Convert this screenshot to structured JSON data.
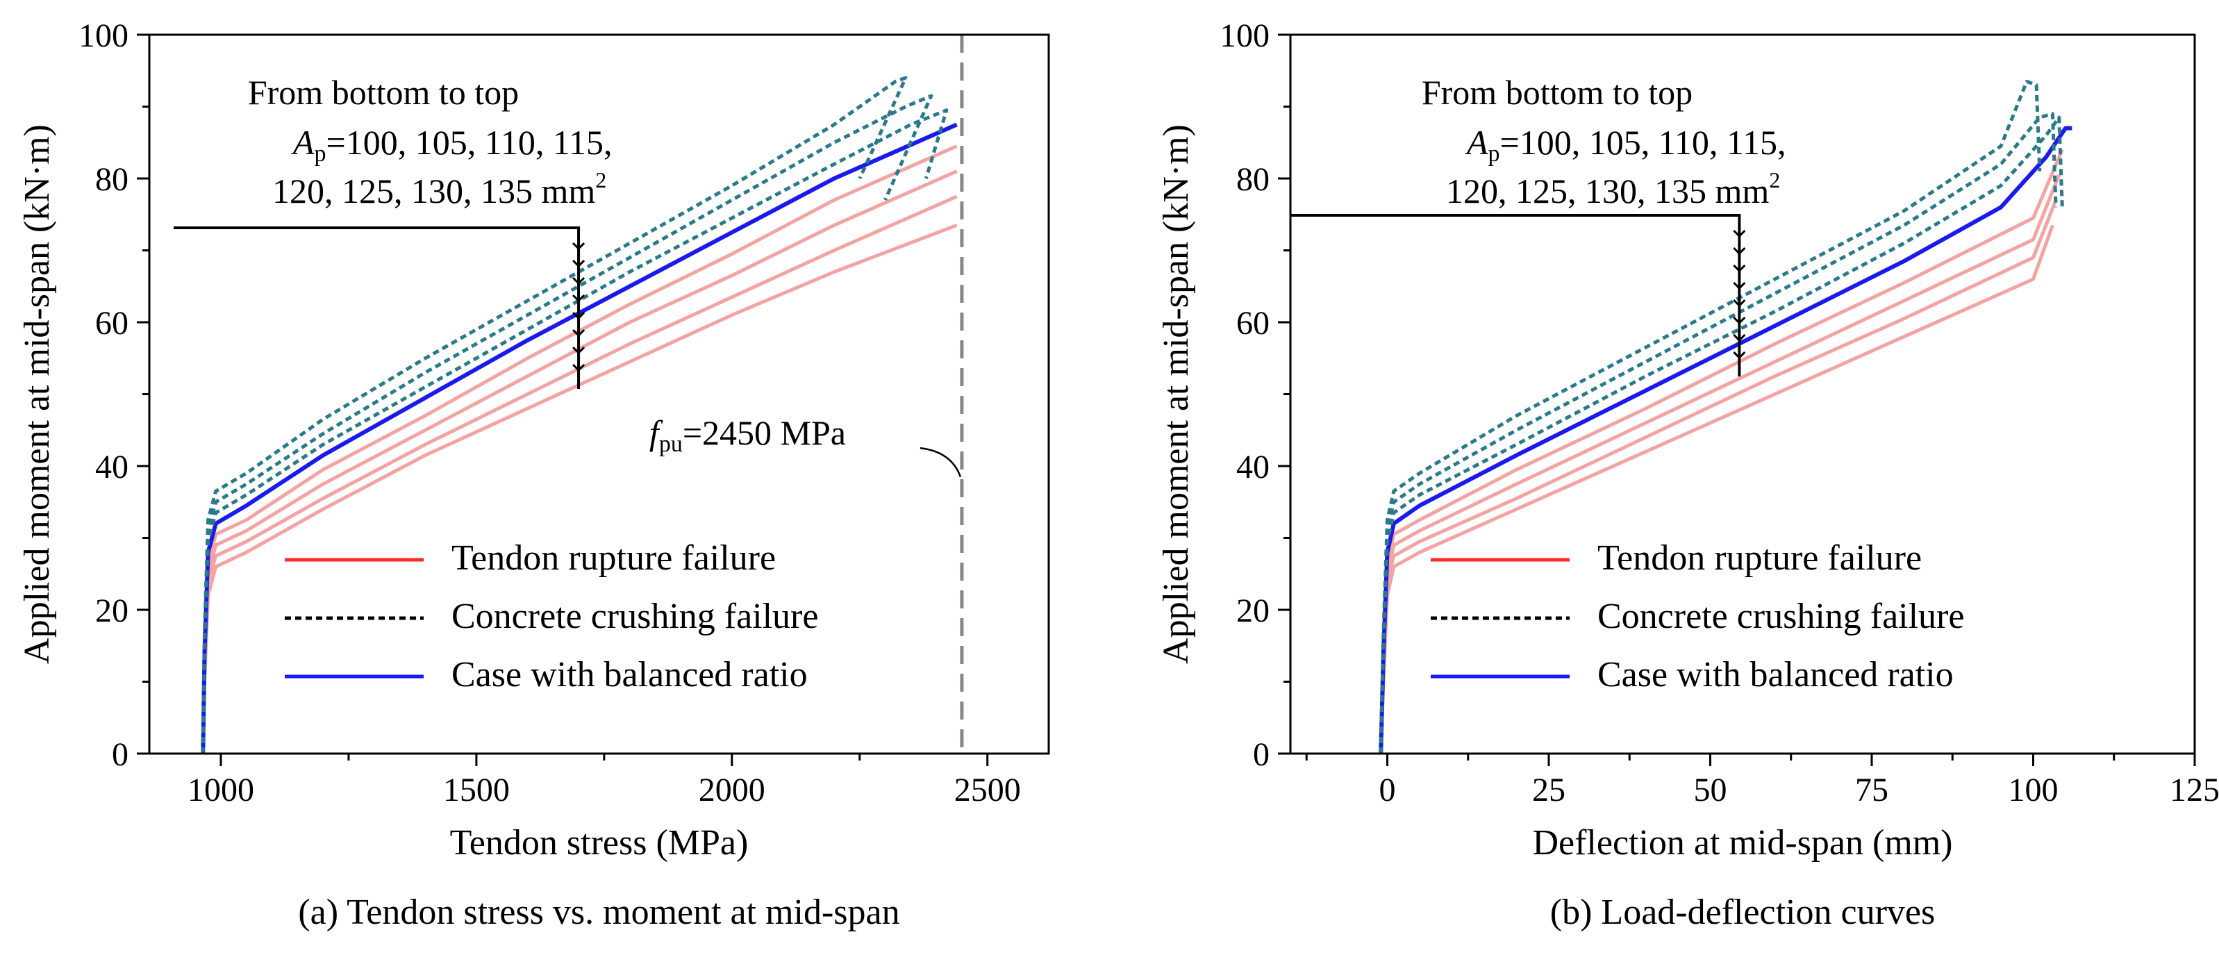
{
  "chart_data": [
    {
      "id": "a",
      "type": "line",
      "caption": "(a) Tendon stress vs. moment at mid-span",
      "xlabel": "Tendon stress (MPa)",
      "ylabel": "Applied moment at mid-span (kN·m)",
      "xlim": [
        860,
        2620
      ],
      "ylim": [
        0,
        100
      ],
      "xticks": [
        1000,
        1500,
        2000,
        2500
      ],
      "yticks": [
        0,
        20,
        40,
        60,
        80,
        100
      ],
      "annotation": {
        "prefix": "f",
        "sub": "pu",
        "suffix": "=2450 MPa",
        "value": 2450
      },
      "note": {
        "line1": "From bottom to top",
        "sym": "A",
        "sub": "p",
        "line2": "=100, 105, 110, 115,",
        "line3": "120, 125, 130, 135 mm",
        "sup": "2",
        "arrow_x": 1700
      },
      "series": [
        {
          "name": "Ap=100",
          "failure": "Tendon rupture failure",
          "x": [
            965,
            968,
            975,
            990,
            1050,
            1200,
            1400,
            1600,
            1800,
            2000,
            2200,
            2440
          ],
          "y": [
            0,
            10,
            22,
            26,
            28,
            34,
            41.5,
            48,
            54.5,
            61,
            67,
            73.5
          ]
        },
        {
          "name": "Ap=105",
          "failure": "Tendon rupture failure",
          "x": [
            965,
            968,
            975,
            990,
            1050,
            1200,
            1400,
            1600,
            1800,
            2000,
            2200,
            2440
          ],
          "y": [
            0,
            11,
            24,
            27.5,
            29.5,
            35.5,
            43,
            50,
            57,
            63.5,
            70,
            77.5
          ]
        },
        {
          "name": "Ap=110",
          "failure": "Tendon rupture failure",
          "x": [
            965,
            968,
            975,
            990,
            1050,
            1200,
            1400,
            1600,
            1800,
            2000,
            2200,
            2440
          ],
          "y": [
            0,
            12,
            25,
            29,
            31,
            37.5,
            45,
            52.5,
            60,
            66.5,
            73.5,
            81
          ]
        },
        {
          "name": "Ap=115",
          "failure": "Tendon rupture failure",
          "x": [
            965,
            968,
            975,
            990,
            1050,
            1200,
            1400,
            1600,
            1800,
            2000,
            2200,
            2440
          ],
          "y": [
            0,
            13,
            26.5,
            30.5,
            32.5,
            39.5,
            47,
            55,
            62.5,
            69.5,
            77,
            84.5
          ]
        },
        {
          "name": "Ap=120",
          "failure": "Case with balanced ratio",
          "x": [
            965,
            968,
            975,
            990,
            1050,
            1200,
            1400,
            1600,
            1800,
            2000,
            2200,
            2440
          ],
          "y": [
            0,
            14,
            28,
            32,
            34.5,
            41.5,
            49.5,
            57.5,
            65,
            72.5,
            80,
            87.5
          ]
        },
        {
          "name": "Ap=125",
          "failure": "Concrete crushing failure",
          "x": [
            965,
            968,
            975,
            990,
            1050,
            1200,
            1400,
            1600,
            1800,
            2000,
            2200,
            2350,
            2420,
            2380
          ],
          "y": [
            0,
            15,
            29.5,
            33.5,
            36,
            43,
            51,
            59,
            67,
            74.5,
            82,
            87.5,
            89.5,
            80
          ]
        },
        {
          "name": "Ap=130",
          "failure": "Concrete crushing failure",
          "x": [
            965,
            968,
            975,
            990,
            1050,
            1200,
            1400,
            1600,
            1800,
            2000,
            2200,
            2340,
            2390,
            2300
          ],
          "y": [
            0,
            16,
            31,
            35,
            37.5,
            44.5,
            53,
            61,
            69,
            77,
            85,
            90,
            91.5,
            77
          ]
        },
        {
          "name": "Ap=135",
          "failure": "Concrete crushing failure",
          "x": [
            965,
            968,
            975,
            990,
            1050,
            1200,
            1400,
            1600,
            1800,
            2000,
            2200,
            2320,
            2340,
            2250
          ],
          "y": [
            0,
            17,
            32.5,
            36.5,
            39,
            46.5,
            55,
            63,
            71,
            79,
            87.5,
            93.5,
            94,
            80
          ]
        }
      ]
    },
    {
      "id": "b",
      "type": "line",
      "caption": "(b) Load-deflection curves",
      "xlabel": "Deflection at mid-span (mm)",
      "ylabel": "Applied moment at mid-span (kN·m)",
      "xlim": [
        -15,
        125
      ],
      "ylim": [
        0,
        100
      ],
      "xticks": [
        0,
        25,
        50,
        75,
        100,
        125
      ],
      "yticks": [
        0,
        20,
        40,
        60,
        80,
        100
      ],
      "note": {
        "line1": "From bottom to top",
        "sym": "A",
        "sub": "p",
        "line2": "=100, 105, 110, 115,",
        "line3": "120, 125, 130, 135 mm",
        "sup": "2",
        "arrow_x": 54.5
      },
      "series": [
        {
          "name": "Ap=100",
          "failure": "Tendon rupture failure",
          "x": [
            -1,
            -0.6,
            0,
            1,
            5,
            20,
            40,
            60,
            80,
            100,
            103
          ],
          "y": [
            0,
            10,
            22,
            26,
            28,
            34,
            42,
            50,
            58,
            66,
            73.5
          ]
        },
        {
          "name": "Ap=105",
          "failure": "Tendon rupture failure",
          "x": [
            -1,
            -0.6,
            0,
            1,
            5,
            20,
            40,
            60,
            80,
            100,
            103.5
          ],
          "y": [
            0,
            11,
            24,
            27.5,
            29.5,
            35.5,
            44,
            52.5,
            60.5,
            69,
            77
          ]
        },
        {
          "name": "Ap=110",
          "failure": "Tendon rupture failure",
          "x": [
            -1,
            -0.6,
            0,
            1,
            5,
            20,
            40,
            60,
            80,
            100,
            104
          ],
          "y": [
            0,
            12,
            25,
            29,
            31,
            37.5,
            46,
            54.5,
            63,
            71.5,
            80.5
          ]
        },
        {
          "name": "Ap=115",
          "failure": "Tendon rupture failure",
          "x": [
            -1,
            -0.6,
            0,
            1,
            5,
            20,
            40,
            60,
            80,
            100,
            104.5
          ],
          "y": [
            0,
            13,
            26.5,
            30.5,
            32.5,
            39.5,
            48,
            57,
            65.5,
            74.5,
            84
          ]
        },
        {
          "name": "Ap=120",
          "failure": "Case with balanced ratio",
          "x": [
            -1,
            -0.6,
            0,
            1,
            5,
            20,
            40,
            60,
            80,
            95,
            102,
            105,
            106
          ],
          "y": [
            0,
            14,
            28,
            32,
            34.5,
            41.5,
            50.5,
            59.5,
            68.5,
            76,
            83,
            87,
            87
          ]
        },
        {
          "name": "Ap=125",
          "failure": "Concrete crushing failure",
          "x": [
            -1,
            -0.6,
            0,
            1,
            5,
            20,
            40,
            60,
            80,
            95,
            102,
            104,
            104.5
          ],
          "y": [
            0,
            15,
            29.5,
            33.5,
            36,
            43,
            52.5,
            61.5,
            71,
            79,
            86,
            88.5,
            76
          ]
        },
        {
          "name": "Ap=130",
          "failure": "Concrete crushing failure",
          "x": [
            -1,
            -0.6,
            0,
            1,
            5,
            20,
            40,
            60,
            80,
            95,
            101,
            103,
            103.5
          ],
          "y": [
            0,
            16,
            31,
            35,
            37.5,
            45,
            54.5,
            64,
            73.5,
            82,
            88.5,
            89,
            76
          ]
        },
        {
          "name": "Ap=135",
          "failure": "Concrete crushing failure",
          "x": [
            -1,
            -0.6,
            0,
            1,
            5,
            20,
            40,
            60,
            80,
            95,
            99,
            100.5,
            101
          ],
          "y": [
            0,
            17,
            32.5,
            36.5,
            39,
            47,
            56.5,
            66,
            75.5,
            84.5,
            93.5,
            93,
            81
          ]
        }
      ]
    }
  ],
  "legend": [
    {
      "label": "Tendon rupture failure",
      "color": "#ff2a2a",
      "dash": "solid"
    },
    {
      "label": "Concrete crushing failure",
      "color": "#000000",
      "dash": "dashed"
    },
    {
      "label": "Case with balanced ratio",
      "color": "#1a1aff",
      "dash": "solid"
    }
  ],
  "colors": {
    "rupture": "#f4a3a3",
    "crushing": "#2a7a8c",
    "balanced": "#1a1aee",
    "vline": "#888888"
  }
}
